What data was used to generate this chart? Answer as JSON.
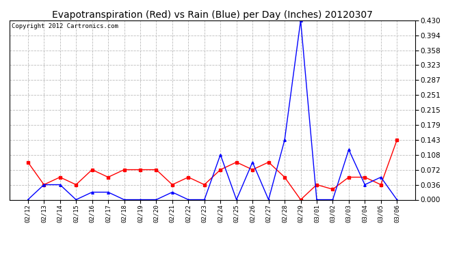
{
  "title": "Evapotranspiration (Red) vs Rain (Blue) per Day (Inches) 20120307",
  "copyright_text": "Copyright 2012 Cartronics.com",
  "x_labels": [
    "02/12",
    "02/13",
    "02/14",
    "02/15",
    "02/16",
    "02/17",
    "02/18",
    "02/19",
    "02/20",
    "02/21",
    "02/22",
    "02/23",
    "02/24",
    "02/25",
    "02/26",
    "02/27",
    "02/28",
    "02/29",
    "03/01",
    "03/02",
    "03/03",
    "03/04",
    "03/05",
    "03/06"
  ],
  "red_data": [
    0.09,
    0.036,
    0.054,
    0.036,
    0.072,
    0.054,
    0.072,
    0.072,
    0.072,
    0.036,
    0.054,
    0.036,
    0.072,
    0.09,
    0.072,
    0.09,
    0.054,
    0.0,
    0.036,
    0.025,
    0.054,
    0.054,
    0.036,
    0.143
  ],
  "blue_data": [
    0.0,
    0.036,
    0.036,
    0.0,
    0.018,
    0.018,
    0.0,
    0.0,
    0.0,
    0.018,
    0.0,
    0.0,
    0.108,
    0.0,
    0.09,
    0.0,
    0.143,
    0.43,
    0.0,
    0.0,
    0.12,
    0.036,
    0.054,
    0.0
  ],
  "ylim": [
    0.0,
    0.43
  ],
  "yticks": [
    0.0,
    0.036,
    0.072,
    0.108,
    0.143,
    0.179,
    0.215,
    0.251,
    0.287,
    0.323,
    0.358,
    0.394,
    0.43
  ],
  "red_color": "#FF0000",
  "blue_color": "#0000FF",
  "bg_color": "#FFFFFF",
  "plot_bg_color": "#FFFFFF",
  "grid_color": "#BBBBBB",
  "title_fontsize": 10,
  "copyright_fontsize": 6.5,
  "xtick_fontsize": 6.5,
  "ytick_fontsize": 7.5
}
